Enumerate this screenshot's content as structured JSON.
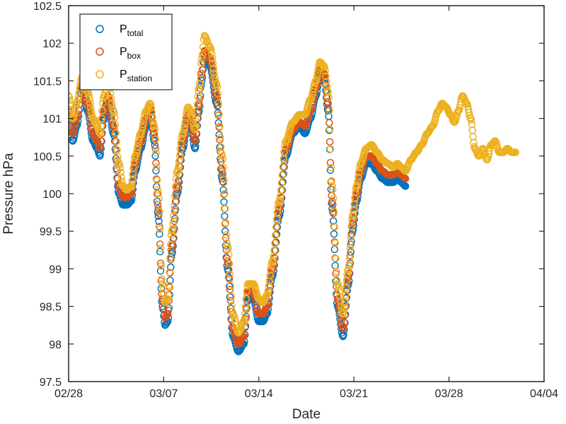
{
  "chart_data": {
    "type": "scatter",
    "title": "",
    "xlabel": "Date",
    "ylabel": "Pressure hPa",
    "x_ticks": [
      "02/28",
      "03/07",
      "03/14",
      "03/21",
      "03/28",
      "04/04"
    ],
    "x_tick_days": [
      0,
      7,
      14,
      21,
      28,
      35
    ],
    "xlim_days": [
      0,
      35
    ],
    "x_unit": "days after 02/28",
    "ylim": [
      97.5,
      102.5
    ],
    "y_ticks": [
      "97.5",
      "98",
      "98.5",
      "99",
      "99.5",
      "100",
      "100.5",
      "101",
      "101.5",
      "102",
      "102.5"
    ],
    "grid": false,
    "legend_position": "top-left",
    "legend": [
      {
        "base": "P",
        "sub": "total",
        "color": "#0072BD"
      },
      {
        "base": "P",
        "sub": "box",
        "color": "#D95319"
      },
      {
        "base": "P",
        "sub": "station",
        "color": "#EDB120"
      }
    ],
    "series": [
      {
        "name": "Ptotal",
        "color": "#0072BD",
        "x": [
          0.0,
          0.3,
          0.6,
          1.0,
          1.4,
          1.8,
          2.1,
          2.3,
          2.6,
          2.9,
          3.3,
          3.7,
          4.0,
          4.3,
          4.6,
          4.9,
          5.3,
          5.7,
          6.0,
          6.3,
          6.6,
          6.9,
          7.1,
          7.3,
          7.6,
          8.0,
          8.4,
          8.8,
          9.0,
          9.3,
          9.6,
          9.8,
          10.0,
          10.4,
          10.9,
          11.3,
          11.7,
          12.1,
          12.5,
          12.9,
          13.2,
          13.6,
          14.0,
          14.3,
          14.6,
          15.0,
          15.5,
          16.0,
          16.5,
          17.0,
          17.4,
          17.8,
          18.2,
          18.5,
          18.8,
          19.1,
          19.4,
          19.8,
          20.2,
          20.6,
          20.9,
          21.2,
          21.5,
          21.9,
          22.3,
          22.7,
          23.1,
          23.5,
          23.9,
          24.2,
          24.5,
          24.8
        ],
        "y": [
          101.0,
          100.7,
          100.9,
          101.4,
          101.1,
          100.7,
          100.6,
          100.5,
          101.0,
          101.2,
          100.8,
          100.0,
          99.85,
          99.85,
          99.9,
          100.3,
          100.6,
          100.9,
          101.1,
          100.7,
          99.7,
          98.5,
          98.25,
          98.3,
          99.2,
          100.0,
          100.6,
          101.0,
          100.9,
          100.6,
          101.1,
          101.5,
          101.8,
          101.7,
          101.2,
          100.2,
          99.0,
          98.1,
          97.9,
          98.0,
          98.6,
          98.6,
          98.3,
          98.3,
          98.4,
          98.9,
          99.7,
          100.5,
          100.8,
          100.9,
          100.8,
          101.0,
          101.3,
          101.6,
          101.55,
          101.1,
          99.8,
          98.5,
          98.1,
          98.8,
          99.5,
          99.9,
          100.2,
          100.4,
          100.4,
          100.3,
          100.2,
          100.15,
          100.15,
          100.2,
          100.15,
          100.1
        ]
      },
      {
        "name": "Pbox",
        "color": "#D95319",
        "x": [
          0.0,
          0.3,
          0.6,
          1.0,
          1.4,
          1.8,
          2.1,
          2.3,
          2.6,
          2.9,
          3.3,
          3.7,
          4.0,
          4.3,
          4.6,
          4.9,
          5.3,
          5.7,
          6.0,
          6.3,
          6.6,
          6.9,
          7.1,
          7.3,
          7.6,
          8.0,
          8.4,
          8.8,
          9.0,
          9.3,
          9.6,
          9.8,
          10.0,
          10.4,
          10.9,
          11.3,
          11.7,
          12.1,
          12.5,
          12.9,
          13.2,
          13.6,
          14.0,
          14.3,
          14.6,
          15.0,
          15.5,
          16.0,
          16.5,
          17.0,
          17.4,
          17.8,
          18.2,
          18.5,
          18.8,
          19.1,
          19.4,
          19.8,
          20.2,
          20.6,
          20.9,
          21.2,
          21.5,
          21.9,
          22.3,
          22.7,
          23.1,
          23.5,
          23.9,
          24.2,
          24.5,
          24.8
        ],
        "y": [
          101.1,
          100.8,
          101.0,
          101.45,
          101.2,
          100.8,
          100.7,
          100.6,
          101.1,
          101.3,
          100.9,
          100.1,
          99.95,
          99.95,
          100.0,
          100.4,
          100.7,
          101.0,
          101.15,
          100.8,
          99.8,
          98.6,
          98.35,
          98.4,
          99.3,
          100.1,
          100.7,
          101.05,
          100.95,
          100.7,
          101.2,
          101.6,
          101.9,
          101.8,
          101.3,
          100.3,
          99.1,
          98.2,
          98.0,
          98.1,
          98.7,
          98.7,
          98.4,
          98.4,
          98.5,
          99.0,
          99.8,
          100.6,
          100.85,
          100.95,
          100.9,
          101.1,
          101.4,
          101.65,
          101.6,
          101.2,
          99.9,
          98.6,
          98.2,
          98.9,
          99.6,
          100.0,
          100.3,
          100.5,
          100.5,
          100.4,
          100.3,
          100.25,
          100.25,
          100.3,
          100.25,
          100.2
        ]
      },
      {
        "name": "Pstation",
        "color": "#EDB120",
        "x": [
          0.0,
          0.3,
          0.6,
          1.0,
          1.4,
          1.8,
          2.1,
          2.3,
          2.6,
          2.9,
          3.3,
          3.7,
          4.0,
          4.3,
          4.6,
          4.9,
          5.3,
          5.7,
          6.0,
          6.3,
          6.6,
          6.9,
          7.1,
          7.3,
          7.6,
          8.0,
          8.4,
          8.8,
          9.0,
          9.3,
          9.6,
          9.8,
          10.0,
          10.4,
          10.9,
          11.3,
          11.7,
          12.1,
          12.5,
          12.9,
          13.2,
          13.6,
          14.0,
          14.3,
          14.6,
          15.0,
          15.5,
          16.0,
          16.5,
          17.0,
          17.4,
          17.8,
          18.2,
          18.5,
          18.8,
          19.1,
          19.4,
          19.8,
          20.2,
          20.6,
          20.9,
          21.2,
          21.5,
          21.9,
          22.3,
          22.7,
          23.1,
          23.5,
          23.9,
          24.2,
          24.5,
          24.8,
          25.2,
          25.6,
          26.0,
          26.4,
          26.8,
          27.2,
          27.5,
          27.8,
          28.1,
          28.4,
          28.7,
          29.0,
          29.3,
          29.6,
          29.9,
          30.2,
          30.5,
          30.8,
          31.1,
          31.4,
          31.7,
          32.0,
          32.3,
          32.6,
          32.9
        ],
        "y": [
          101.3,
          101.0,
          101.2,
          101.55,
          101.35,
          101.0,
          100.9,
          100.8,
          101.3,
          101.5,
          101.1,
          100.4,
          100.1,
          100.05,
          100.1,
          100.5,
          100.8,
          101.1,
          101.2,
          100.9,
          100.0,
          98.8,
          98.55,
          98.6,
          99.5,
          100.3,
          100.8,
          101.15,
          101.1,
          100.85,
          101.4,
          101.8,
          102.1,
          101.95,
          101.45,
          100.5,
          99.3,
          98.4,
          98.15,
          98.3,
          98.8,
          98.8,
          98.6,
          98.55,
          98.65,
          99.1,
          99.9,
          100.7,
          100.95,
          101.05,
          101.05,
          101.25,
          101.5,
          101.75,
          101.7,
          101.35,
          100.1,
          98.8,
          98.4,
          99.0,
          99.7,
          100.1,
          100.4,
          100.6,
          100.65,
          100.55,
          100.45,
          100.4,
          100.35,
          100.4,
          100.35,
          100.3,
          100.45,
          100.55,
          100.65,
          100.8,
          100.9,
          101.1,
          101.2,
          101.15,
          101.05,
          100.95,
          101.1,
          101.3,
          101.2,
          101.0,
          100.6,
          100.5,
          100.6,
          100.45,
          100.65,
          100.7,
          100.55,
          100.55,
          100.6,
          100.55,
          100.55
        ]
      }
    ]
  }
}
